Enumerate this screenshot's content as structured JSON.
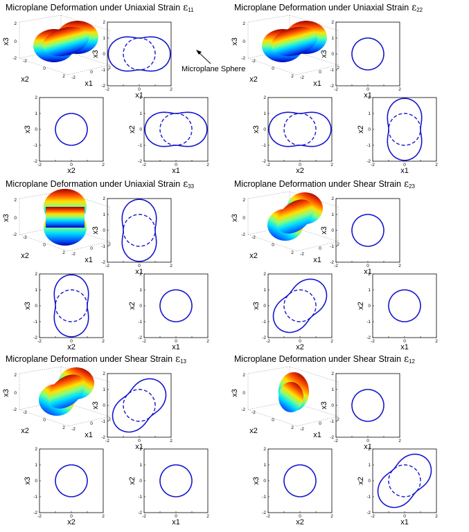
{
  "annotation": {
    "text": "Microplane Sphere"
  },
  "colors": {
    "curve": "#1414d0",
    "frame": "#000000",
    "box3d": "#888888"
  },
  "tick_labels": [
    "-2",
    "-1",
    "0",
    "1",
    "2"
  ],
  "panels": [
    {
      "title": "Microplane Deformation under Uniaxial Strain",
      "symbol": "ε",
      "subscript": "11",
      "surface_orientation": "x1",
      "views": [
        {
          "slot": "top-right",
          "xlabel": "x1",
          "ylabel": "x3",
          "shape": "peanut",
          "dir_deg": 0
        },
        {
          "slot": "bottom-left",
          "xlabel": "x2",
          "ylabel": "x3",
          "shape": "circle"
        },
        {
          "slot": "bottom-right",
          "xlabel": "x1",
          "ylabel": "x2",
          "shape": "peanut",
          "dir_deg": 0
        }
      ]
    },
    {
      "title": "Microplane Deformation under Uniaxial Strain",
      "symbol": "ε",
      "subscript": "22",
      "surface_orientation": "x2",
      "views": [
        {
          "slot": "top-right",
          "xlabel": "x1",
          "ylabel": "x3",
          "shape": "circle"
        },
        {
          "slot": "bottom-left",
          "xlabel": "x2",
          "ylabel": "x3",
          "shape": "peanut",
          "dir_deg": 0
        },
        {
          "slot": "bottom-right",
          "xlabel": "x1",
          "ylabel": "x2",
          "shape": "peanut",
          "dir_deg": 90
        }
      ]
    },
    {
      "title": "Microplane Deformation under Uniaxial Strain",
      "symbol": "ε",
      "subscript": "33",
      "surface_orientation": "x3",
      "views": [
        {
          "slot": "top-right",
          "xlabel": "x1",
          "ylabel": "x3",
          "shape": "peanut",
          "dir_deg": 90
        },
        {
          "slot": "bottom-left",
          "xlabel": "x2",
          "ylabel": "x3",
          "shape": "peanut",
          "dir_deg": 90
        },
        {
          "slot": "bottom-right",
          "xlabel": "x1",
          "ylabel": "x2",
          "shape": "circle"
        }
      ]
    },
    {
      "title": "Microplane Deformation under Shear Strain",
      "symbol": "ε",
      "subscript": "23",
      "surface_orientation": "diagonal",
      "views": [
        {
          "slot": "top-right",
          "xlabel": "x1",
          "ylabel": "x3",
          "shape": "circle"
        },
        {
          "slot": "bottom-left",
          "xlabel": "x2",
          "ylabel": "x3",
          "shape": "peanut",
          "dir_deg": 45
        },
        {
          "slot": "bottom-right",
          "xlabel": "x1",
          "ylabel": "x2",
          "shape": "circle"
        }
      ]
    },
    {
      "title": "Microplane Deformation under Shear Strain",
      "symbol": "ε",
      "subscript": "13",
      "surface_orientation": "diagonal",
      "views": [
        {
          "slot": "top-right",
          "xlabel": "x1",
          "ylabel": "x3",
          "shape": "peanut",
          "dir_deg": 45
        },
        {
          "slot": "bottom-left",
          "xlabel": "x2",
          "ylabel": "x3",
          "shape": "circle"
        },
        {
          "slot": "bottom-right",
          "xlabel": "x1",
          "ylabel": "x2",
          "shape": "circle"
        }
      ]
    },
    {
      "title": "Microplane Deformation under Shear Strain",
      "symbol": "ε",
      "subscript": "12",
      "surface_orientation": "compact",
      "views": [
        {
          "slot": "top-right",
          "xlabel": "x1",
          "ylabel": "x3",
          "shape": "circle"
        },
        {
          "slot": "bottom-left",
          "xlabel": "x2",
          "ylabel": "x3",
          "shape": "circle"
        },
        {
          "slot": "bottom-right",
          "xlabel": "x1",
          "ylabel": "x2",
          "shape": "peanut",
          "dir_deg": 45
        }
      ]
    }
  ],
  "surface_axes": {
    "xlabel": "x1",
    "ylabel": "x2",
    "zlabel": "x3"
  }
}
